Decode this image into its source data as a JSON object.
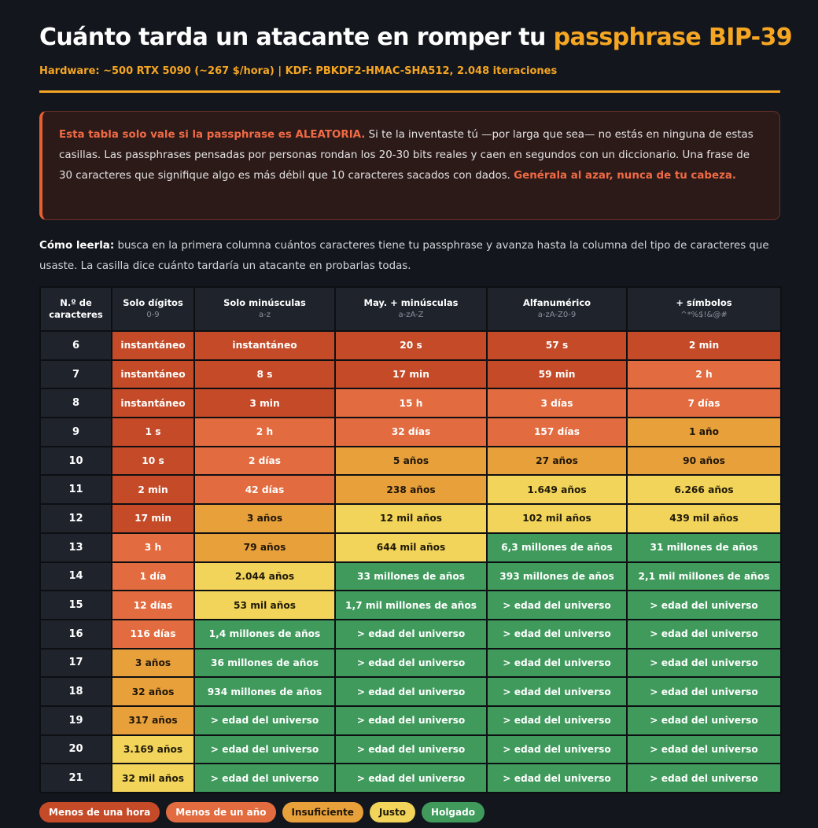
{
  "header": {
    "title_main": "Cuánto tarda un atacante en romper tu ",
    "title_accent": "passphrase BIP-39",
    "subtitle": "Hardware: ~500 RTX 5090 (~267 $/hora)  |  KDF: PBKDF2-HMAC-SHA512, 2.048 iteraciones"
  },
  "warning": {
    "hl1": "Esta tabla solo vale si la passphrase es ALEATORIA.",
    "body": " Si te la inventaste tú —por larga que sea— no estás en ninguna de estas casillas. Las passphrases pensadas por personas rondan los 20-30 bits reales y caen en segundos con un diccionario. Una frase de 30 caracteres que signifique algo es más débil que 10 caracteres sacados con dados. ",
    "hl2": "Genérala al azar, nunca de tu cabeza."
  },
  "howto": {
    "bold": "Cómo leerla:",
    "text": " busca en la primera columna cuántos caracteres tiene tu passphrase y avanza hasta la columna del tipo de caracteres que usaste. La casilla dice cuánto tardaría un atacante en probarlas todas."
  },
  "colors": {
    "c1": "#c54a27",
    "c2": "#e26b3f",
    "c3": "#e8a03a",
    "c4": "#f2d45a",
    "c5": "#3f9a5c",
    "accent": "#f5a623"
  },
  "table": {
    "columns": [
      {
        "label_1": "N.º de",
        "label_2": "caracteres",
        "sub": ""
      },
      {
        "label_1": "Solo dígitos",
        "label_2": "",
        "sub": "0-9"
      },
      {
        "label_1": "Solo minúsculas",
        "label_2": "",
        "sub": "a-z"
      },
      {
        "label_1": "May. + minúsculas",
        "label_2": "",
        "sub": "a-zA-Z"
      },
      {
        "label_1": "Alfanumérico",
        "label_2": "",
        "sub": "a-zA-Z0-9"
      },
      {
        "label_1": "+ símbolos",
        "label_2": "",
        "sub": "^*%$!&@#"
      }
    ],
    "rows": [
      {
        "n": "6",
        "cells": [
          [
            "instantáneo",
            "c1"
          ],
          [
            "instantáneo",
            "c1"
          ],
          [
            "20 s",
            "c1"
          ],
          [
            "57 s",
            "c1"
          ],
          [
            "2 min",
            "c1"
          ]
        ]
      },
      {
        "n": "7",
        "cells": [
          [
            "instantáneo",
            "c1"
          ],
          [
            "8 s",
            "c1"
          ],
          [
            "17 min",
            "c1"
          ],
          [
            "59 min",
            "c1"
          ],
          [
            "2 h",
            "c2"
          ]
        ]
      },
      {
        "n": "8",
        "cells": [
          [
            "instantáneo",
            "c1"
          ],
          [
            "3 min",
            "c1"
          ],
          [
            "15 h",
            "c2"
          ],
          [
            "3 días",
            "c2"
          ],
          [
            "7 días",
            "c2"
          ]
        ]
      },
      {
        "n": "9",
        "cells": [
          [
            "1 s",
            "c1"
          ],
          [
            "2 h",
            "c2"
          ],
          [
            "32 días",
            "c2"
          ],
          [
            "157 días",
            "c2"
          ],
          [
            "1 año",
            "c3"
          ]
        ]
      },
      {
        "n": "10",
        "cells": [
          [
            "10 s",
            "c1"
          ],
          [
            "2 días",
            "c2"
          ],
          [
            "5 años",
            "c3"
          ],
          [
            "27 años",
            "c3"
          ],
          [
            "90 años",
            "c3"
          ]
        ]
      },
      {
        "n": "11",
        "cells": [
          [
            "2 min",
            "c1"
          ],
          [
            "42 días",
            "c2"
          ],
          [
            "238 años",
            "c3"
          ],
          [
            "1.649 años",
            "c4"
          ],
          [
            "6.266 años",
            "c4"
          ]
        ]
      },
      {
        "n": "12",
        "cells": [
          [
            "17 min",
            "c1"
          ],
          [
            "3 años",
            "c3"
          ],
          [
            "12 mil años",
            "c4"
          ],
          [
            "102 mil años",
            "c4"
          ],
          [
            "439 mil años",
            "c4"
          ]
        ]
      },
      {
        "n": "13",
        "cells": [
          [
            "3 h",
            "c2"
          ],
          [
            "79 años",
            "c3"
          ],
          [
            "644 mil años",
            "c4"
          ],
          [
            "6,3 millones de años",
            "c5"
          ],
          [
            "31 millones de años",
            "c5"
          ]
        ]
      },
      {
        "n": "14",
        "cells": [
          [
            "1 día",
            "c2"
          ],
          [
            "2.044 años",
            "c4"
          ],
          [
            "33 millones de años",
            "c5"
          ],
          [
            "393 millones de años",
            "c5"
          ],
          [
            "2,1 mil millones de años",
            "c5"
          ]
        ]
      },
      {
        "n": "15",
        "cells": [
          [
            "12 días",
            "c2"
          ],
          [
            "53 mil años",
            "c4"
          ],
          [
            "1,7 mil millones de años",
            "c5"
          ],
          [
            "> edad del universo",
            "c5"
          ],
          [
            "> edad del universo",
            "c5"
          ]
        ]
      },
      {
        "n": "16",
        "cells": [
          [
            "116 días",
            "c2"
          ],
          [
            "1,4 millones de años",
            "c5"
          ],
          [
            "> edad del universo",
            "c5"
          ],
          [
            "> edad del universo",
            "c5"
          ],
          [
            "> edad del universo",
            "c5"
          ]
        ]
      },
      {
        "n": "17",
        "cells": [
          [
            "3 años",
            "c3"
          ],
          [
            "36 millones de años",
            "c5"
          ],
          [
            "> edad del universo",
            "c5"
          ],
          [
            "> edad del universo",
            "c5"
          ],
          [
            "> edad del universo",
            "c5"
          ]
        ]
      },
      {
        "n": "18",
        "cells": [
          [
            "32 años",
            "c3"
          ],
          [
            "934 millones de años",
            "c5"
          ],
          [
            "> edad del universo",
            "c5"
          ],
          [
            "> edad del universo",
            "c5"
          ],
          [
            "> edad del universo",
            "c5"
          ]
        ]
      },
      {
        "n": "19",
        "cells": [
          [
            "317 años",
            "c3"
          ],
          [
            "> edad del universo",
            "c5"
          ],
          [
            "> edad del universo",
            "c5"
          ],
          [
            "> edad del universo",
            "c5"
          ],
          [
            "> edad del universo",
            "c5"
          ]
        ]
      },
      {
        "n": "20",
        "cells": [
          [
            "3.169 años",
            "c4"
          ],
          [
            "> edad del universo",
            "c5"
          ],
          [
            "> edad del universo",
            "c5"
          ],
          [
            "> edad del universo",
            "c5"
          ],
          [
            "> edad del universo",
            "c5"
          ]
        ]
      },
      {
        "n": "21",
        "cells": [
          [
            "32 mil años",
            "c4"
          ],
          [
            "> edad del universo",
            "c5"
          ],
          [
            "> edad del universo",
            "c5"
          ],
          [
            "> edad del universo",
            "c5"
          ],
          [
            "> edad del universo",
            "c5"
          ]
        ]
      }
    ]
  },
  "legend": [
    {
      "label": "Menos de una hora",
      "cls": "c1"
    },
    {
      "label": "Menos de un año",
      "cls": "c2"
    },
    {
      "label": "Insuficiente",
      "cls": "c3"
    },
    {
      "label": "Justo",
      "cls": "c4"
    },
    {
      "label": "Holgado",
      "cls": "c5"
    }
  ]
}
